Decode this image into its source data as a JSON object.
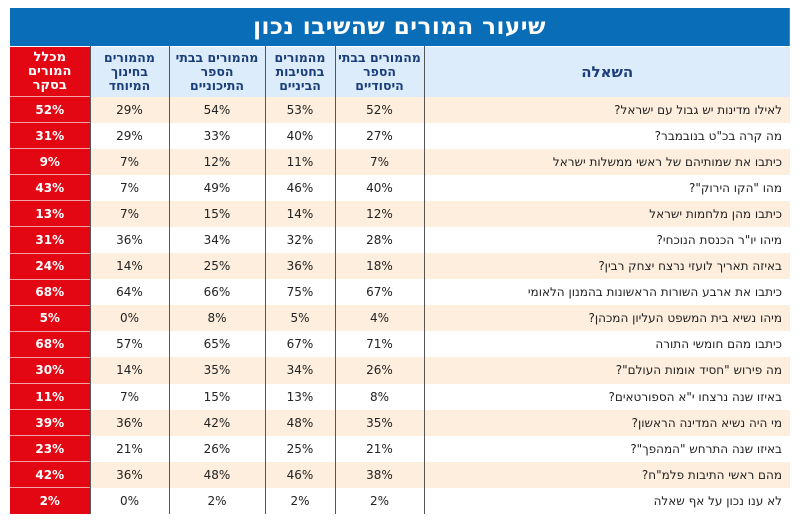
{
  "title": "שיעור המורים שהשיבו נכון",
  "headers": {
    "question": "השאלה",
    "elementary": "מהמורים בבתי הספר היסודיים",
    "middle": "מהמורים בחטיבות הביניים",
    "high": "מהמורים בבתי הספר התיכוניים",
    "special": "מהמורים בחינוך המיוחד",
    "total": "מכלל המורים בסקר"
  },
  "colors": {
    "title_bg": "#0a6db8",
    "header_bg": "#dcecfb",
    "total_bg": "#e30613",
    "stripe_bg": "#fdeedd"
  },
  "rows": [
    {
      "question": "לאילו מדינות יש גבול עם ישראל?",
      "elementary": "52%",
      "middle": "53%",
      "high": "54%",
      "special": "29%",
      "total": "52%"
    },
    {
      "question": "מה קרה בכ\"ט בנובמבר?",
      "elementary": "27%",
      "middle": "40%",
      "high": "33%",
      "special": "29%",
      "total": "31%"
    },
    {
      "question": "כיתבו את שמותיהם של ראשי ממשלות ישראל",
      "elementary": "7%",
      "middle": "11%",
      "high": "12%",
      "special": "7%",
      "total": "9%"
    },
    {
      "question": "מהו \"הקו הירוק\"?",
      "elementary": "40%",
      "middle": "46%",
      "high": "49%",
      "special": "7%",
      "total": "43%"
    },
    {
      "question": "כיתבו מהן מלחמות ישראל",
      "elementary": "12%",
      "middle": "14%",
      "high": "15%",
      "special": "7%",
      "total": "13%"
    },
    {
      "question": "מיהו יו\"ר הכנסת הנוכחי?",
      "elementary": "28%",
      "middle": "32%",
      "high": "34%",
      "special": "36%",
      "total": "31%"
    },
    {
      "question": "באיזה תאריך לועזי נרצח יצחק רבין?",
      "elementary": "18%",
      "middle": "36%",
      "high": "25%",
      "special": "14%",
      "total": "24%"
    },
    {
      "question": "כיתבו את ארבע השורות הראשונות בהמנון הלאומי",
      "elementary": "67%",
      "middle": "75%",
      "high": "66%",
      "special": "64%",
      "total": "68%"
    },
    {
      "question": "מיהו נשיא בית המשפט העליון המכהן?",
      "elementary": "4%",
      "middle": "5%",
      "high": "8%",
      "special": "0%",
      "total": "5%"
    },
    {
      "question": "כיתבו מהם חומשי התורה",
      "elementary": "71%",
      "middle": "67%",
      "high": "65%",
      "special": "57%",
      "total": "68%"
    },
    {
      "question": "מה פירוש \"חסיד אומות העולם\"?",
      "elementary": "26%",
      "middle": "34%",
      "high": "35%",
      "special": "14%",
      "total": "30%"
    },
    {
      "question": "באיזו שנה נרצחו י\"א הספורטאים?",
      "elementary": "8%",
      "middle": "13%",
      "high": "15%",
      "special": "7%",
      "total": "11%"
    },
    {
      "question": "מי היה נשיא המדינה הראשון?",
      "elementary": "35%",
      "middle": "48%",
      "high": "42%",
      "special": "36%",
      "total": "39%"
    },
    {
      "question": "באיזו שנה התרחש \"המהפך\"?",
      "elementary": "21%",
      "middle": "25%",
      "high": "26%",
      "special": "21%",
      "total": "23%"
    },
    {
      "question": "מהם ראשי התיבות פלמ\"ח?",
      "elementary": "38%",
      "middle": "46%",
      "high": "48%",
      "special": "36%",
      "total": "42%"
    },
    {
      "question": "לא ענו נכון על אף שאלה",
      "elementary": "2%",
      "middle": "2%",
      "high": "2%",
      "special": "0%",
      "total": "2%"
    }
  ]
}
